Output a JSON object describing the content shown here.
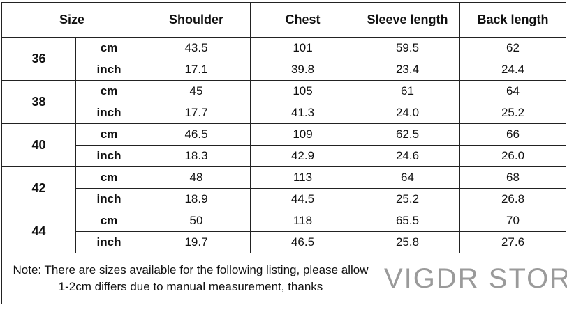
{
  "headers": {
    "size": "Size",
    "shoulder": "Shoulder",
    "chest": "Chest",
    "sleeve": "Sleeve length",
    "back": "Back length"
  },
  "rows": [
    {
      "size": "36",
      "cm": {
        "unit": "cm",
        "shoulder": "43.5",
        "chest": "101",
        "sleeve": "59.5",
        "back": "62"
      },
      "inch": {
        "unit": "inch",
        "shoulder": "17.1",
        "chest": "39.8",
        "sleeve": "23.4",
        "back": "24.4"
      }
    },
    {
      "size": "38",
      "cm": {
        "unit": "cm",
        "shoulder": "45",
        "chest": "105",
        "sleeve": "61",
        "back": "64"
      },
      "inch": {
        "unit": "inch",
        "shoulder": "17.7",
        "chest": "41.3",
        "sleeve": "24.0",
        "back": "25.2"
      }
    },
    {
      "size": "40",
      "cm": {
        "unit": "cm",
        "shoulder": "46.5",
        "chest": "109",
        "sleeve": "62.5",
        "back": "66"
      },
      "inch": {
        "unit": "inch",
        "shoulder": "18.3",
        "chest": "42.9",
        "sleeve": "24.6",
        "back": "26.0"
      }
    },
    {
      "size": "42",
      "cm": {
        "unit": "cm",
        "shoulder": "48",
        "chest": "113",
        "sleeve": "64",
        "back": "68"
      },
      "inch": {
        "unit": "inch",
        "shoulder": "18.9",
        "chest": "44.5",
        "sleeve": "25.2",
        "back": "26.8"
      }
    },
    {
      "size": "44",
      "cm": {
        "unit": "cm",
        "shoulder": "50",
        "chest": "118",
        "sleeve": "65.5",
        "back": "70"
      },
      "inch": {
        "unit": "inch",
        "shoulder": "19.7",
        "chest": "46.5",
        "sleeve": "25.8",
        "back": "27.6"
      }
    }
  ],
  "note": "Note: There are sizes available for the following listing, please allow 1-2cm differs due to manual measurement, thanks",
  "watermark": "VIGDR STORE"
}
